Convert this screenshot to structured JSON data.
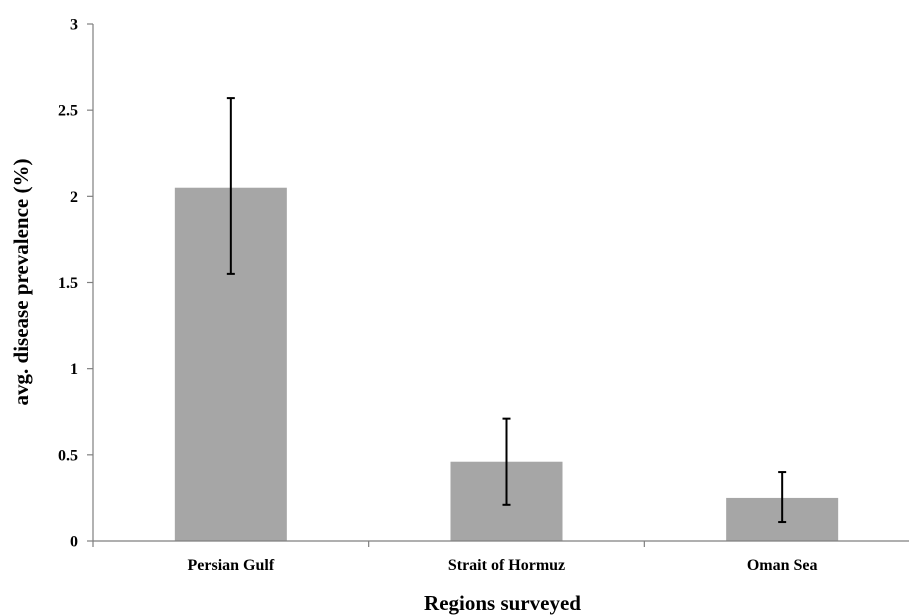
{
  "chart_data": {
    "type": "bar",
    "title": "",
    "xlabel": "Regions surveyed",
    "ylabel": "avg. disease prevalence (%)",
    "categories": [
      "Persian Gulf",
      "Strait of Hormuz",
      "Oman Sea"
    ],
    "values": [
      2.05,
      0.46,
      0.25
    ],
    "error_low": [
      1.55,
      0.21,
      0.11
    ],
    "error_high": [
      2.57,
      0.71,
      0.4
    ],
    "ylim": [
      0,
      3
    ],
    "yticks": [
      0,
      0.5,
      1,
      1.5,
      2,
      2.5,
      3
    ],
    "ytick_labels": [
      "0",
      "0.5",
      "1",
      "1.5",
      "2",
      "2.5",
      "3"
    ],
    "grid": false,
    "legend": "none",
    "colors": {
      "bar": "#a6a6a6",
      "axis": "#7f7f7f",
      "error_bar": "#000000",
      "text": "#000000"
    }
  }
}
